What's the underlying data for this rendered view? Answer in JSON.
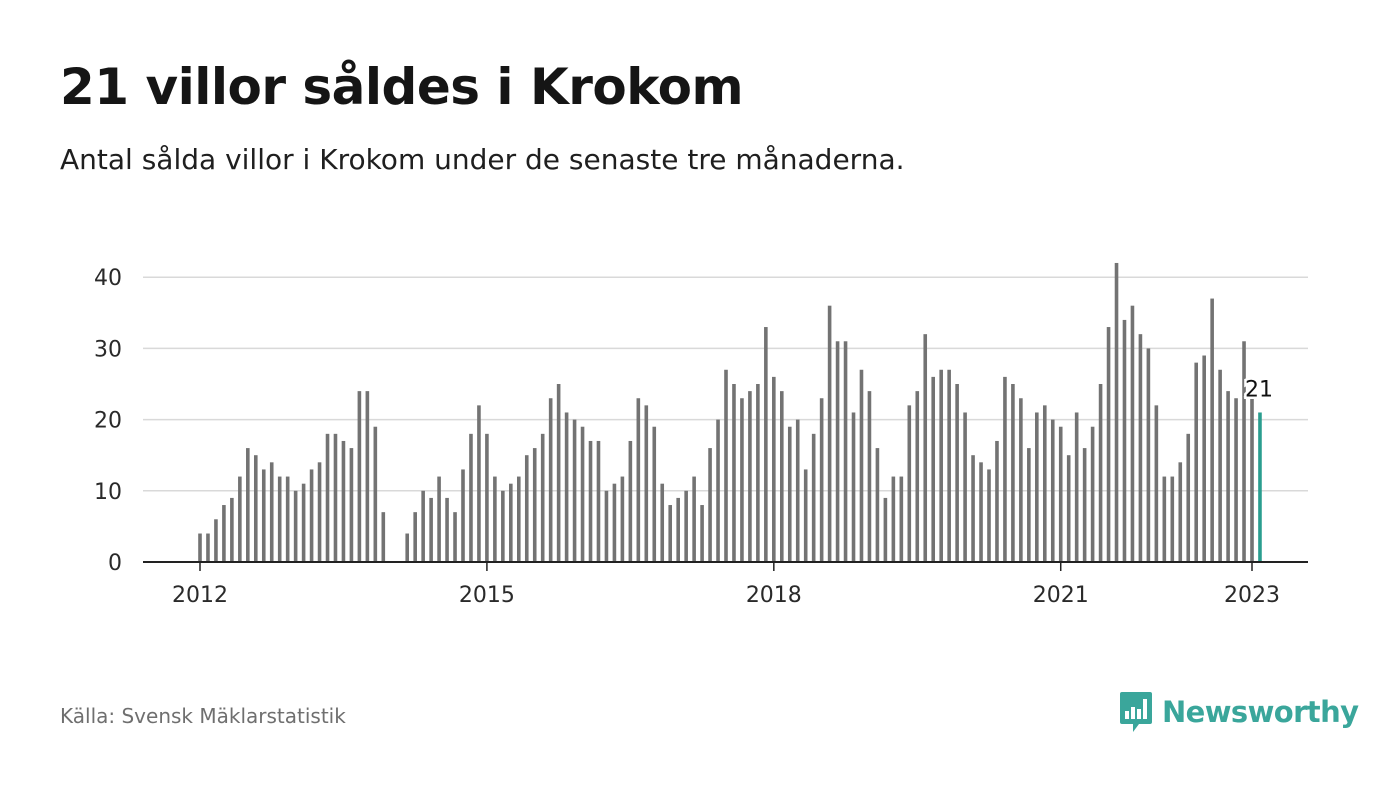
{
  "header": {
    "title": "21 villor såldes i Krokom",
    "subtitle": "Antal sålda villor i Krokom under de senaste tre månaderna."
  },
  "footer": {
    "source": "Källa: Svensk Mäklarstatistik",
    "brand": "Newsworthy",
    "brand_icon": "bar-chart-speech-bubble-icon"
  },
  "colors": {
    "bar": "#737373",
    "highlight": "#2a9d8f",
    "grid": "#d9d9d9",
    "axis": "#222222",
    "brand": "#3aa69b"
  },
  "chart_data": {
    "type": "bar",
    "title": "21 villor såldes i Krokom",
    "subtitle": "Antal sålda villor i Krokom under de senaste tre månaderna.",
    "xlabel": "",
    "ylabel": "",
    "x_unit": "month",
    "start": "2012-01",
    "values": [
      4,
      4,
      6,
      8,
      9,
      12,
      16,
      15,
      13,
      14,
      12,
      12,
      10,
      11,
      13,
      14,
      18,
      18,
      17,
      16,
      24,
      24,
      19,
      7,
      null,
      null,
      4,
      7,
      10,
      9,
      12,
      9,
      7,
      13,
      18,
      22,
      18,
      12,
      10,
      11,
      12,
      15,
      16,
      18,
      23,
      25,
      21,
      20,
      19,
      17,
      17,
      10,
      11,
      12,
      17,
      23,
      22,
      19,
      11,
      8,
      9,
      10,
      12,
      8,
      16,
      20,
      27,
      25,
      23,
      24,
      25,
      33,
      26,
      24,
      19,
      20,
      13,
      18,
      23,
      36,
      31,
      31,
      21,
      27,
      24,
      16,
      9,
      12,
      12,
      22,
      24,
      32,
      26,
      27,
      27,
      25,
      21,
      15,
      14,
      13,
      17,
      26,
      25,
      23,
      16,
      21,
      22,
      20,
      19,
      15,
      21,
      16,
      19,
      25,
      33,
      42,
      34,
      36,
      32,
      30,
      22,
      12,
      12,
      14,
      18,
      28,
      29,
      37,
      27,
      24,
      23,
      31,
      24,
      21
    ],
    "x_ticks": [
      "2012",
      "2015",
      "2018",
      "2021",
      "2023"
    ],
    "y_ticks": [
      0,
      10,
      20,
      30,
      40
    ],
    "ylim": [
      0,
      42
    ],
    "grid": true,
    "highlight_last": true,
    "last_value_label": "21",
    "legend": "none"
  }
}
